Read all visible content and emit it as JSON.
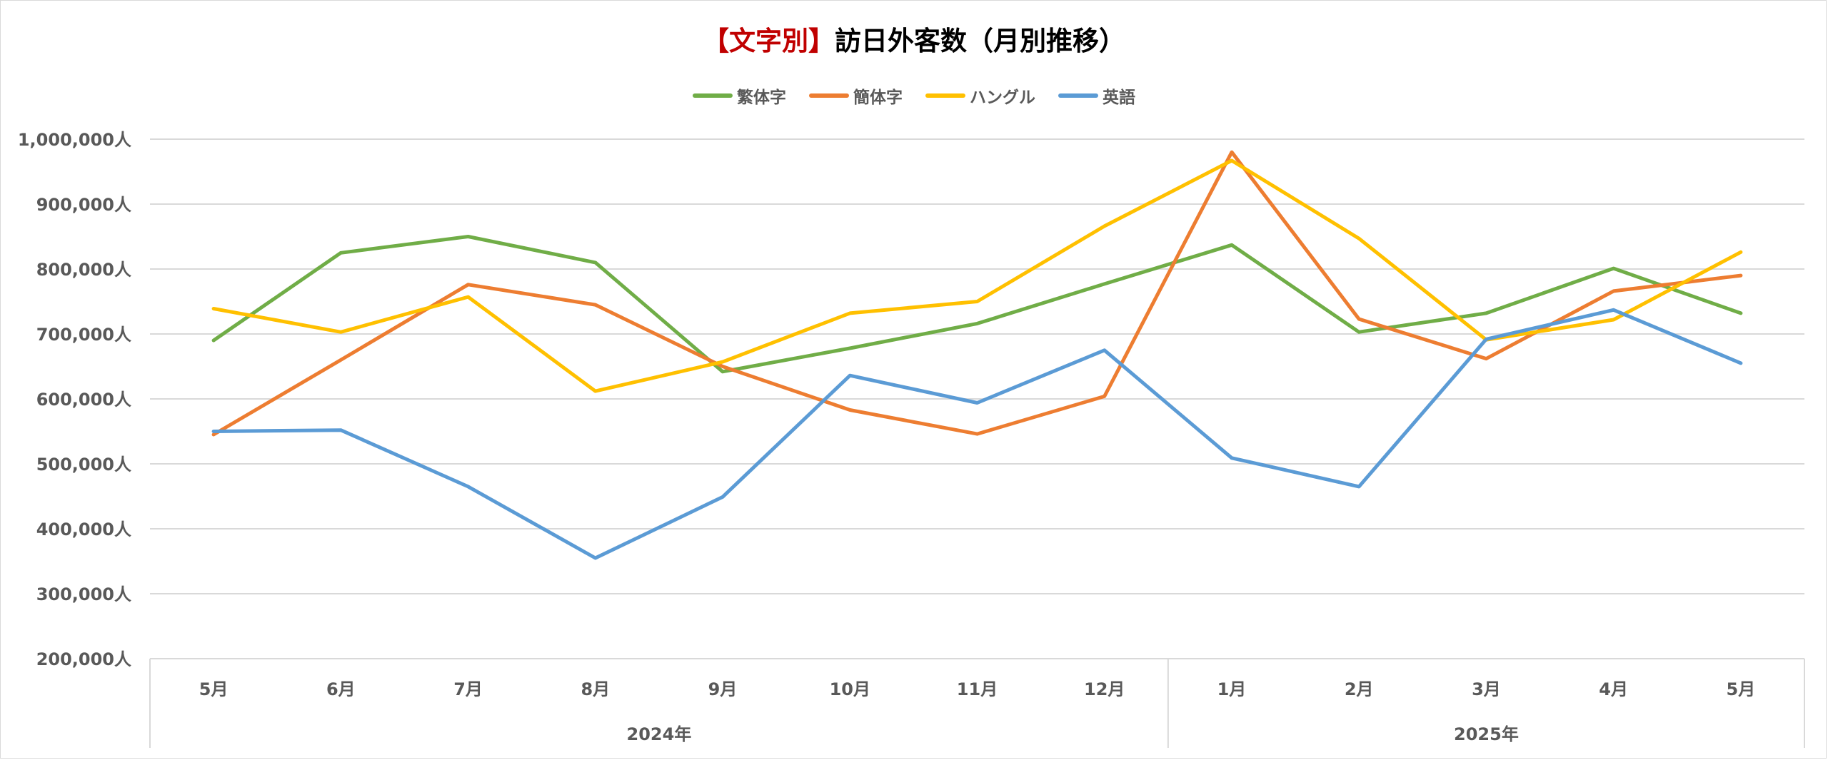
{
  "chart_data": {
    "type": "line",
    "title_bracket": "【文字別】",
    "title_rest": "訪日外客数（月別推移）",
    "categories": [
      "5月",
      "6月",
      "7月",
      "8月",
      "9月",
      "10月",
      "11月",
      "12月",
      "1月",
      "2月",
      "3月",
      "4月",
      "5月"
    ],
    "groups": [
      {
        "label": "2024年",
        "count": 8
      },
      {
        "label": "2025年",
        "count": 5
      }
    ],
    "ylim": [
      200000,
      1000000
    ],
    "yticks": [
      200000,
      300000,
      400000,
      500000,
      600000,
      700000,
      800000,
      900000,
      1000000
    ],
    "ytick_labels": [
      "200,000人",
      "300,000人",
      "400,000人",
      "500,000人",
      "600,000人",
      "700,000人",
      "800,000人",
      "900,000人",
      "1,000,000人"
    ],
    "grid": true,
    "legend_position": "top",
    "series": [
      {
        "name": "繁体字",
        "color": "#70ad47",
        "values": [
          690000,
          825000,
          850000,
          810000,
          642000,
          678000,
          716000,
          777000,
          837000,
          703000,
          732000,
          801000,
          732000
        ]
      },
      {
        "name": "簡体字",
        "color": "#ed7d31",
        "values": [
          545000,
          660000,
          776000,
          745000,
          650000,
          583000,
          546000,
          604000,
          980000,
          723000,
          662000,
          766000,
          790000
        ]
      },
      {
        "name": "ハングル",
        "color": "#ffc000",
        "values": [
          739000,
          703000,
          757000,
          612000,
          657000,
          732000,
          750000,
          866000,
          967000,
          847000,
          691000,
          722000,
          826000
        ]
      },
      {
        "name": "英語",
        "color": "#5b9bd5",
        "values": [
          550000,
          552000,
          465000,
          355000,
          449000,
          636000,
          594000,
          675000,
          509000,
          465000,
          692000,
          737000,
          655000
        ]
      }
    ]
  }
}
